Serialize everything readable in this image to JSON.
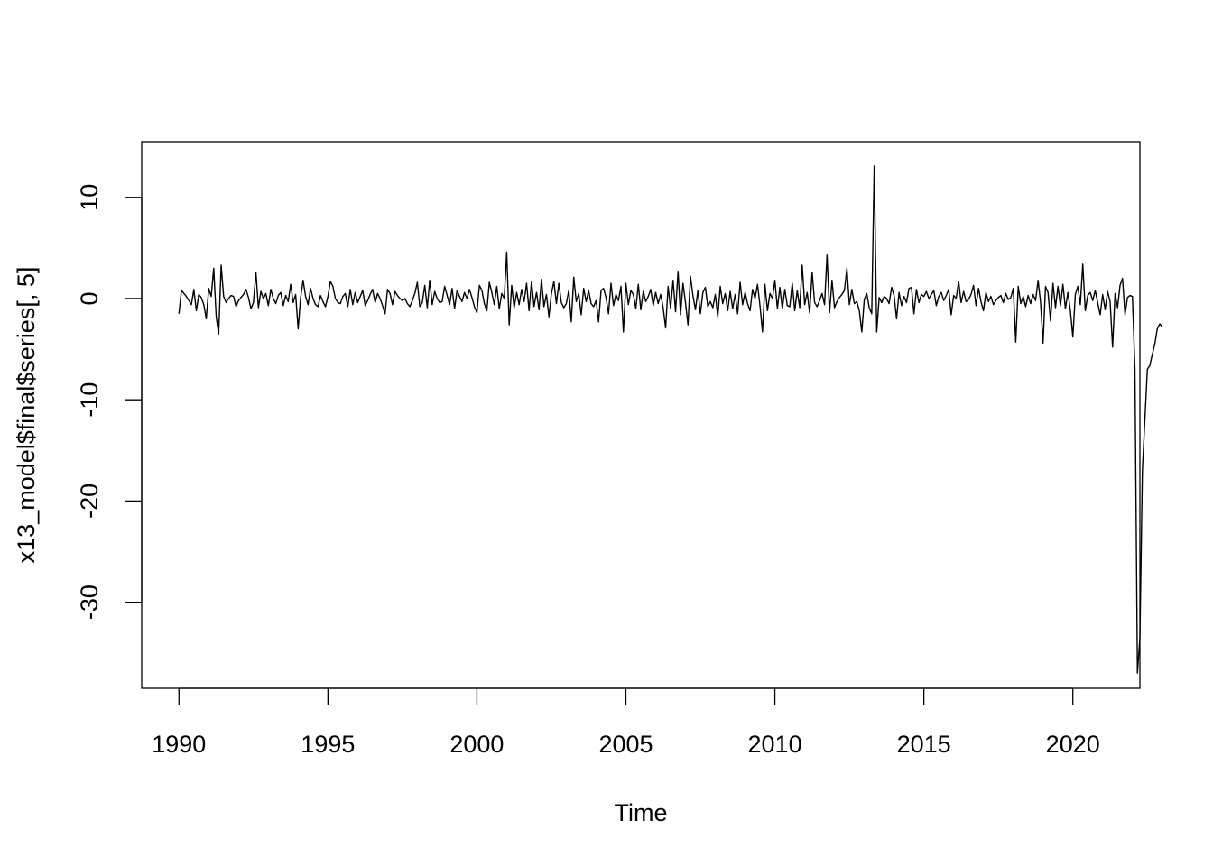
{
  "chart_data": {
    "type": "line",
    "title": "",
    "xlabel": "Time",
    "ylabel": "x13_model$final$series[, 5]",
    "xlim": [
      1988.75,
      2022.25
    ],
    "ylim": [
      -38.5,
      15.5
    ],
    "x_ticks": [
      1990,
      1995,
      2000,
      2005,
      2010,
      2015,
      2020
    ],
    "x_tick_labels": [
      "1990",
      "1995",
      "2000",
      "2005",
      "2010",
      "2015",
      "2020"
    ],
    "y_ticks": [
      -30,
      -20,
      -10,
      0,
      10
    ],
    "y_tick_labels": [
      "-30",
      "-20",
      "-10",
      "0",
      "10"
    ],
    "grid": false,
    "legend": "none",
    "colors": {
      "line": "#000000",
      "axes": "#000000",
      "background": "#ffffff"
    },
    "series": [
      {
        "start": 1990.0,
        "frequency": 12,
        "values": [
          -1.5,
          0.8,
          0.5,
          0.2,
          -0.2,
          -0.6,
          0.9,
          -1.2,
          0.4,
          0.1,
          -0.6,
          -2.0,
          1.0,
          0.2,
          3.0,
          -1.8,
          -3.5,
          3.3,
          0.2,
          -0.4,
          0.0,
          0.3,
          0.2,
          -0.8,
          -0.2,
          0.1,
          0.4,
          0.9,
          0.1,
          -1.0,
          -0.4,
          2.6,
          -0.9,
          0.7,
          0.0,
          0.5,
          -0.7,
          0.9,
          0.0,
          -0.5,
          0.3,
          0.6,
          -0.7,
          0.3,
          -0.3,
          1.4,
          -0.4,
          0.4,
          -3.0,
          0.1,
          1.8,
          0.2,
          -0.6,
          1.0,
          0.0,
          -0.6,
          -0.8,
          0.3,
          -0.3,
          -0.8,
          0.2,
          1.7,
          1.2,
          0.0,
          -0.4,
          -0.5,
          0.2,
          0.5,
          -0.8,
          0.9,
          -0.6,
          0.6,
          -0.4,
          0.2,
          0.8,
          -0.7,
          -0.2,
          0.4,
          0.9,
          -0.4,
          0.5,
          0.0,
          -0.7,
          -1.5,
          0.9,
          0.5,
          -0.6,
          0.7,
          0.3,
          0.0,
          -0.2,
          0.0,
          -0.5,
          -0.8,
          -0.2,
          0.5,
          1.6,
          -0.8,
          -0.4,
          1.3,
          -0.9,
          1.8,
          -0.6,
          0.7,
          0.0,
          -0.4,
          -0.3,
          1.2,
          0.3,
          -0.6,
          1.0,
          -1.0,
          0.8,
          0.2,
          -0.3,
          0.6,
          0.0,
          0.9,
          0.1,
          -0.8,
          -1.4,
          1.3,
          0.8,
          -0.5,
          -1.2,
          1.6,
          0.6,
          -0.6,
          1.2,
          -1.0,
          0.5,
          0.0,
          4.6,
          -2.6,
          1.3,
          -0.9,
          0.6,
          -0.6,
          0.9,
          -0.3,
          1.5,
          -1.2,
          1.7,
          -0.8,
          0.6,
          -1.1,
          1.9,
          -0.8,
          0.4,
          -1.8,
          0.5,
          1.7,
          -0.5,
          1.5,
          -0.4,
          -0.9,
          -0.5,
          0.8,
          -2.3,
          2.1,
          -0.3,
          0.5,
          -1.6,
          1.0,
          -0.3,
          0.8,
          -0.5,
          -0.8,
          -0.2,
          -2.3,
          0.8,
          1.0,
          0.1,
          -1.5,
          1.5,
          -0.7,
          0.4,
          -0.2,
          1.2,
          -3.3,
          1.5,
          -0.6,
          0.8,
          0.4,
          -1.0,
          1.4,
          -1.1,
          0.7,
          -0.3,
          0.2,
          0.9,
          -0.7,
          0.6,
          -0.5,
          0.4,
          -0.9,
          -2.9,
          1.2,
          -1.0,
          1.8,
          -1.3,
          2.7,
          -1.6,
          1.5,
          -0.4,
          -2.6,
          2.2,
          0.3,
          -1.1,
          0.8,
          -1.5,
          0.6,
          1.1,
          -0.8,
          -0.3,
          -0.9,
          0.4,
          -1.8,
          1.2,
          -0.5,
          0.5,
          -1.2,
          0.7,
          -1.0,
          0.4,
          -1.5,
          1.6,
          -0.6,
          0.6,
          -0.5,
          -1.2,
          0.9,
          0.0,
          1.4,
          -0.7,
          -3.3,
          1.4,
          -1.2,
          0.5,
          0.0,
          1.8,
          -1.0,
          1.1,
          -1.0,
          0.9,
          -0.7,
          -0.8,
          1.5,
          -1.2,
          0.8,
          -0.9,
          3.3,
          -0.6,
          0.6,
          -1.4,
          2.6,
          -0.4,
          -0.8,
          -0.2,
          0.5,
          -0.6,
          4.3,
          -1.4,
          1.8,
          -0.9,
          -0.3,
          0.1,
          0.4,
          0.8,
          3.0,
          -0.6,
          0.9,
          -0.5,
          -0.3,
          -1.2,
          -3.3,
          -0.1,
          0.5,
          -0.9,
          -1.5,
          13.1,
          -3.3,
          0.1,
          -0.4,
          0.2,
          0.0,
          -0.5,
          1.1,
          0.3,
          -2.0,
          0.6,
          -0.7,
          0.2,
          -0.4,
          1.0,
          1.1,
          -1.5,
          0.9,
          -0.4,
          0.4,
          0.2,
          0.7,
          0.0,
          0.4,
          0.8,
          -0.7,
          0.2,
          0.6,
          -0.2,
          0.3,
          0.9,
          -1.6,
          0.3,
          0.0,
          1.7,
          -0.4,
          0.7,
          -0.3,
          -0.1,
          0.4,
          1.3,
          -0.7,
          1.0,
          -0.3,
          -1.2,
          0.6,
          -0.3,
          0.2,
          -0.6,
          -0.2,
          0.1,
          0.3,
          -0.4,
          0.5,
          -0.1,
          0.1,
          1.0,
          -4.3,
          1.2,
          -0.5,
          0.2,
          -0.8,
          0.3,
          -0.5,
          0.4,
          -0.2,
          1.8,
          -0.4,
          -4.4,
          1.2,
          0.6,
          -2.2,
          1.5,
          -0.9,
          1.2,
          -0.7,
          1.4,
          -1.0,
          0.6,
          -1.2,
          -3.8,
          0.4,
          1.2,
          -0.6,
          3.4,
          -1.2,
          0.3,
          0.6,
          -0.2,
          0.8,
          -0.4,
          -1.6,
          0.4,
          -1.1,
          0.7,
          -0.3,
          -4.8,
          0.5,
          -0.9,
          1.3,
          2.0,
          -1.6,
          0.1,
          0.3,
          0.2,
          -7.0,
          -37.0,
          -33.5,
          -17.0,
          -12.0,
          -7.0,
          -6.6,
          -5.5,
          -4.5,
          -3.0,
          -2.5,
          -2.8
        ]
      }
    ]
  }
}
